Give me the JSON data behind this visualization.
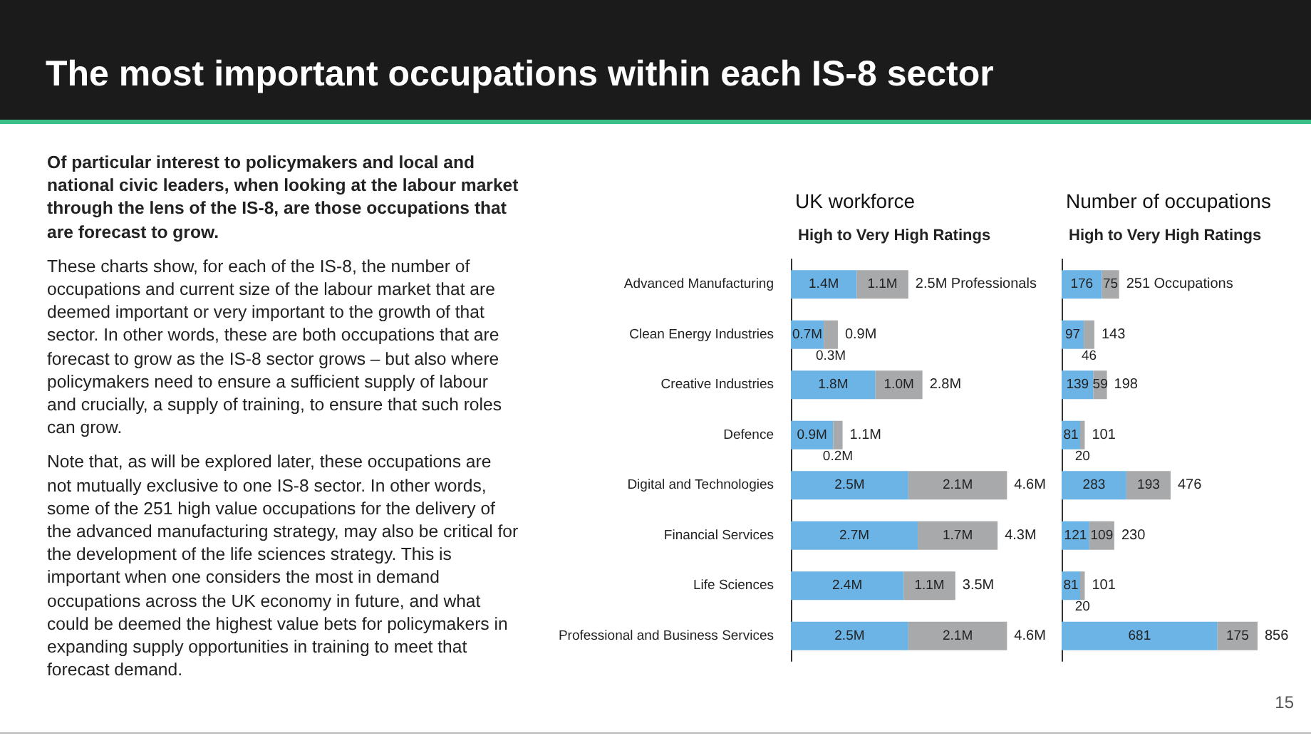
{
  "chart_data": [
    {
      "type": "other",
      "title": "The most important occupations within each IS-8 sector",
      "annotations": [
        "Of particular interest to policymakers and local and national civic leaders, when looking at the labour market through the lens of the IS-8, are those occupations that are forecast to grow.",
        "These charts show, for each of the IS-8, the number of occupations and current size of the labour market that are deemed important or very important to the growth of that sector. In other words, these are both occupations that are forecast to grow as the IS-8 sector grows – but also where policymakers need to ensure a sufficient supply of labour and crucially, a supply of training, to ensure that such roles can grow.",
        "Note that, as will be explored later, these occupations are not mutually exclusive to one IS-8 sector. In other words, some of the 251 high value occupations for the delivery of the advanced manufacturing strategy, may also be critical for the development of the life sciences strategy. This is important when one considers the most in demand occupations across the UK economy in future, and what could be deemed the highest value bets for policymakers in expanding supply opportunities in training to meet that forecast demand.",
        "15"
      ]
    },
    {
      "type": "bar",
      "orientation": "horizontal",
      "stacked": true,
      "title": "UK workforce",
      "subtitle": "High to Very High Ratings",
      "tick_labels": "y",
      "categories": [
        "Advanced Manufacturing",
        "Clean Energy Industries",
        "Creative Industries",
        "Defence",
        "Digital and Technologies",
        "Financial Services",
        "Life Sciences",
        "Professional and Business Services"
      ],
      "series": [
        {
          "color": "#6cb4e6",
          "values": [
            1.4,
            0.7,
            1.8,
            0.9,
            2.5,
            2.7,
            2.4,
            2.5
          ],
          "value_labels": [
            "1.4M",
            "0.7M",
            "1.8M",
            "0.9M",
            "2.5M",
            "2.7M",
            "2.4M",
            "2.5M"
          ]
        },
        {
          "color": "#a7a9ab",
          "values": [
            1.1,
            0.3,
            1.0,
            0.2,
            2.1,
            1.7,
            1.1,
            2.1
          ],
          "value_labels": [
            "1.1M",
            "0.3M",
            "1.0M",
            "0.2M",
            "2.1M",
            "1.7M",
            "1.1M",
            "2.1M"
          ]
        }
      ],
      "totals": [
        "2.5M Professionals",
        "0.9M",
        "2.8M",
        "1.1M",
        "4.6M",
        "4.3M",
        "3.5M",
        "4.6M"
      ]
    },
    {
      "type": "bar",
      "orientation": "horizontal",
      "stacked": true,
      "title": "Number of occupations",
      "subtitle": "High to Very High Ratings",
      "tick_labels": false,
      "categories": [
        null,
        null,
        null,
        null,
        null,
        null,
        null,
        null
      ],
      "series": [
        {
          "color": "#6cb4e6",
          "values": [
            176,
            97,
            139,
            81,
            283,
            121,
            81,
            681
          ],
          "data_labels": true
        },
        {
          "color": "#a7a9ab",
          "values": [
            75,
            46,
            59,
            20,
            193,
            109,
            20,
            175
          ],
          "data_labels": true
        }
      ],
      "totals": [
        "251 Occupations",
        "143",
        "198",
        "101",
        "476",
        "230",
        "101",
        "856"
      ]
    }
  ]
}
